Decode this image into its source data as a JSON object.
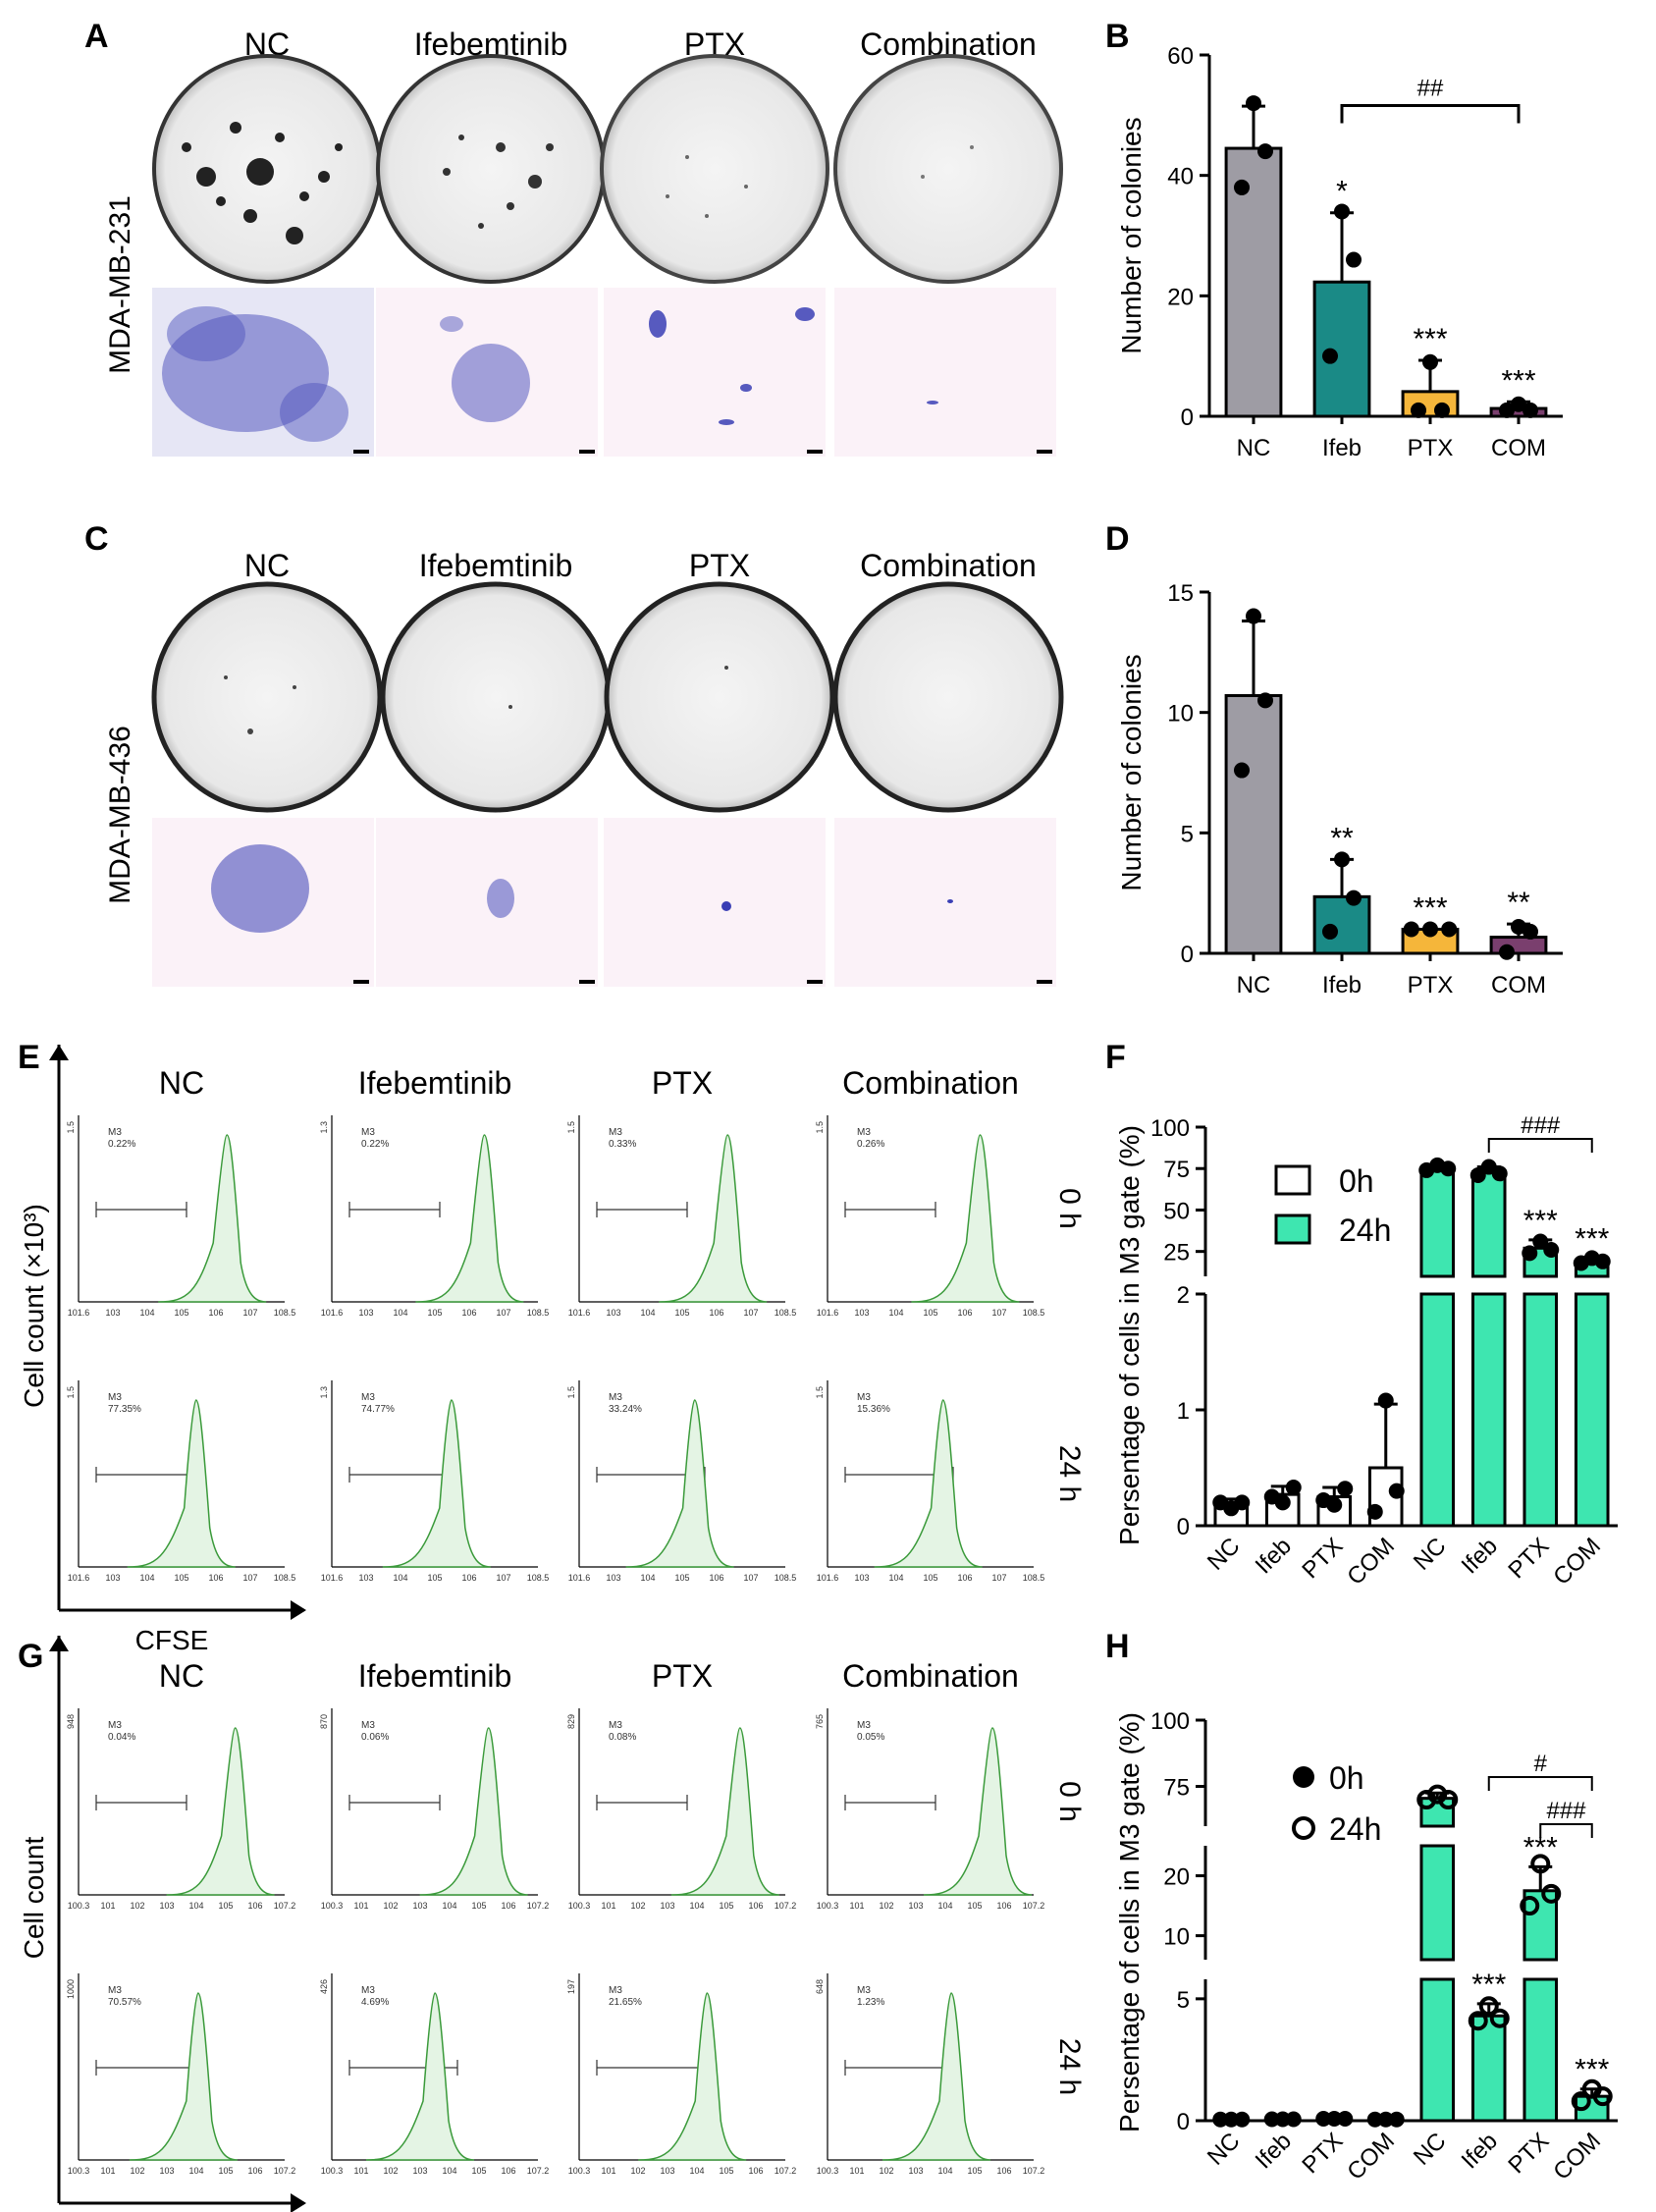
{
  "panels": {
    "A": {
      "letter": "A",
      "cell_line": "MDA-MB-231",
      "columns": [
        "NC",
        "Ifebemtinib",
        "PTX",
        "Combination"
      ]
    },
    "B": {
      "letter": "B"
    },
    "C": {
      "letter": "C",
      "cell_line": "MDA-MB-436",
      "columns": [
        "NC",
        "Ifebemtinib",
        "PTX",
        "Combination"
      ]
    },
    "D": {
      "letter": "D"
    },
    "E": {
      "letter": "E",
      "columns": [
        "NC",
        "Ifebemtinib",
        "PTX",
        "Combination"
      ],
      "rows": [
        "0 h",
        "24 h"
      ],
      "ylabel": "Cell count (×10³)",
      "xlabel": "CFSE",
      "gate_label": "M3",
      "gate_values_0h": [
        "0.22%",
        "0.22%",
        "0.33%",
        "0.26%"
      ],
      "gate_values_24h": [
        "77.35%",
        "74.77%",
        "33.24%",
        "15.36%"
      ],
      "x_ticks": [
        "10^1.6",
        "10^3",
        "10^4",
        "10^5",
        "10^6",
        "10^7",
        "10^8.5"
      ],
      "y_max_0h": [
        "1.5",
        "1.3",
        "1.5",
        "1.5"
      ],
      "y_max_24h": [
        "1.5",
        "1.3",
        "1.5",
        "1.5"
      ]
    },
    "F": {
      "letter": "F"
    },
    "G": {
      "letter": "G",
      "columns": [
        "NC",
        "Ifebemtinib",
        "PTX",
        "Combination"
      ],
      "rows": [
        "0 h",
        "24 h"
      ],
      "ylabel": "Cell count",
      "xlabel": "CFSE",
      "gate_label": "M3",
      "gate_values_0h": [
        "0.04%",
        "0.06%",
        "0.08%",
        "0.05%"
      ],
      "gate_values_24h": [
        "70.57%",
        "4.69%",
        "21.65%",
        "1.23%"
      ],
      "x_ticks": [
        "10^0.3",
        "10^1",
        "10^2",
        "10^3",
        "10^4",
        "10^5",
        "10^6",
        "10^7.2"
      ],
      "y_max_0h": [
        "948",
        "870",
        "829",
        "765"
      ],
      "y_max_24h": [
        "1000",
        "426",
        "197",
        "648"
      ]
    },
    "H": {
      "letter": "H"
    }
  },
  "chart_data": [
    {
      "id": "B",
      "type": "bar",
      "ylabel": "Number of colonies",
      "categories": [
        "NC",
        "Ifeb",
        "PTX",
        "COM"
      ],
      "values": [
        44.5,
        22.3,
        4.1,
        1.3
      ],
      "errors": [
        7,
        11.5,
        5.2,
        1.1
      ],
      "points": [
        [
          52,
          44,
          38
        ],
        [
          34,
          26,
          10
        ],
        [
          9,
          1,
          1
        ],
        [
          2,
          1,
          1
        ]
      ],
      "colors": [
        "#9e9ca4",
        "#1a8a86",
        "#f5b63a",
        "#7a3f6e"
      ],
      "ylim": [
        0,
        60
      ],
      "yticks": [
        "0",
        "20",
        "40",
        "60"
      ],
      "sig": [
        "",
        "*",
        "***",
        "***"
      ],
      "bracket": {
        "from": 1,
        "to": 3,
        "label": "##"
      }
    },
    {
      "id": "D",
      "type": "bar",
      "ylabel": "Number of colonies",
      "categories": [
        "NC",
        "Ifeb",
        "PTX",
        "COM"
      ],
      "values": [
        10.7,
        2.35,
        1.0,
        0.67
      ],
      "errors": [
        3.1,
        1.55,
        0.0,
        0.55
      ],
      "points": [
        [
          14,
          10.5,
          7.6
        ],
        [
          3.9,
          2.3,
          0.9
        ],
        [
          1,
          1,
          1
        ],
        [
          1.1,
          0.9,
          0.05
        ]
      ],
      "colors": [
        "#9e9ca4",
        "#1a8a86",
        "#f5b63a",
        "#7a3f6e"
      ],
      "ylim": [
        0,
        15
      ],
      "yticks": [
        "0",
        "5",
        "10",
        "15"
      ],
      "sig": [
        "",
        "**",
        "***",
        "**"
      ]
    },
    {
      "id": "F",
      "type": "bar",
      "ylabel": "Persentage of cells in M3 gate (%)",
      "categories": [
        "NC",
        "Ifeb",
        "PTX",
        "COM",
        "NC",
        "Ifeb",
        "PTX",
        "COM"
      ],
      "legend": [
        "0h",
        "24h"
      ],
      "values": [
        0.18,
        0.27,
        0.25,
        0.5,
        75,
        73,
        27,
        19
      ],
      "errors": [
        0.05,
        0.07,
        0.08,
        0.55,
        1.5,
        3,
        5,
        2
      ],
      "points": [
        [
          0.15,
          0.2,
          0.2
        ],
        [
          0.2,
          0.33,
          0.25
        ],
        [
          0.18,
          0.32,
          0.22
        ],
        [
          1.08,
          0.3,
          0.12
        ],
        [
          77,
          75,
          74
        ],
        [
          76,
          72,
          71
        ],
        [
          31,
          26,
          24
        ],
        [
          21,
          19,
          18
        ]
      ],
      "colors": [
        "#ffffff",
        "#ffffff",
        "#ffffff",
        "#ffffff",
        "#3ee6b0",
        "#3ee6b0",
        "#3ee6b0",
        "#3ee6b0"
      ],
      "lower_yticks": [
        "0",
        "1",
        "2"
      ],
      "upper_yticks": [
        "25",
        "50",
        "75",
        "100"
      ],
      "sig": [
        "",
        "",
        "",
        "",
        "",
        "",
        "***",
        "***"
      ],
      "bracket": {
        "from": 5,
        "to": 7,
        "label": "###"
      }
    },
    {
      "id": "H",
      "type": "bar",
      "ylabel": "Persentage of cells in M3 gate (%)",
      "categories": [
        "NC",
        "Ifeb",
        "PTX",
        "COM",
        "NC",
        "Ifeb",
        "PTX",
        "COM"
      ],
      "legend": [
        "0h",
        "24h"
      ],
      "values": [
        0.05,
        0.06,
        0.08,
        0.05,
        70.5,
        4.3,
        17.5,
        1.0
      ],
      "errors": [
        0.02,
        0.03,
        0.03,
        0.02,
        2.0,
        0.5,
        4.0,
        0.3
      ],
      "points": [
        [
          0.05,
          0.05,
          0.05
        ],
        [
          0.06,
          0.06,
          0.06
        ],
        [
          0.08,
          0.08,
          0.08
        ],
        [
          0.05,
          0.05,
          0.05
        ],
        [
          72,
          70,
          70
        ],
        [
          4.7,
          4.2,
          4.1
        ],
        [
          22,
          17,
          15
        ],
        [
          1.3,
          1.0,
          0.8
        ]
      ],
      "colors": [
        "#ffffff",
        "#ffffff",
        "#ffffff",
        "#ffffff",
        "#3ee6b0",
        "#3ee6b0",
        "#3ee6b0",
        "#3ee6b0"
      ],
      "lower_yticks": [
        "0",
        "5"
      ],
      "mid_yticks": [
        "10",
        "20"
      ],
      "upper_yticks": [
        "75",
        "100"
      ],
      "sig": [
        "",
        "",
        "",
        "",
        "",
        "***",
        "***",
        "***"
      ],
      "brackets": [
        {
          "from": 5,
          "to": 7,
          "label": "#"
        },
        {
          "from": 6,
          "to": 7,
          "label": "###"
        }
      ]
    }
  ]
}
